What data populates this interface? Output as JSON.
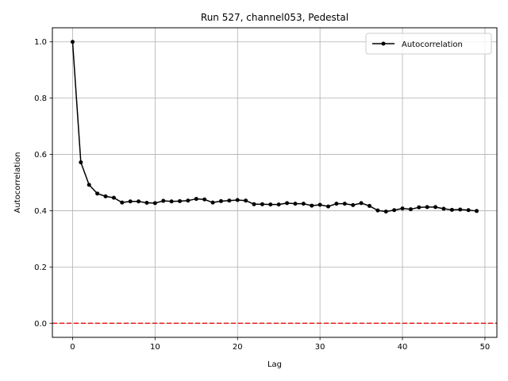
{
  "chart_data": {
    "type": "line",
    "title": "Run 527, channel053, Pedestal",
    "xlabel": "Lag",
    "ylabel": "Autocorrelation",
    "xlim": [
      -2.45,
      51.45
    ],
    "ylim": [
      -0.05,
      1.05
    ],
    "x_ticks": [
      0,
      10,
      20,
      30,
      40,
      50
    ],
    "y_ticks": [
      0.0,
      0.2,
      0.4,
      0.6,
      0.8,
      1.0
    ],
    "x_tick_labels": [
      "0",
      "10",
      "20",
      "30",
      "40",
      "50"
    ],
    "y_tick_labels": [
      "0.0",
      "0.2",
      "0.4",
      "0.6",
      "0.8",
      "1.0"
    ],
    "grid": true,
    "legend_position": "top-right",
    "series": [
      {
        "name": "Autocorrelation",
        "color": "#000000",
        "marker": "circle",
        "x": [
          0,
          1,
          2,
          3,
          4,
          5,
          6,
          7,
          8,
          9,
          10,
          11,
          12,
          13,
          14,
          15,
          16,
          17,
          18,
          19,
          20,
          21,
          22,
          23,
          24,
          25,
          26,
          27,
          28,
          29,
          30,
          31,
          32,
          33,
          34,
          35,
          36,
          37,
          38,
          39,
          40,
          41,
          42,
          43,
          44,
          45,
          46,
          47,
          48,
          49
        ],
        "values": [
          1.0,
          0.572,
          0.492,
          0.461,
          0.451,
          0.446,
          0.429,
          0.433,
          0.433,
          0.428,
          0.427,
          0.435,
          0.433,
          0.434,
          0.436,
          0.442,
          0.44,
          0.429,
          0.434,
          0.436,
          0.438,
          0.436,
          0.423,
          0.423,
          0.422,
          0.422,
          0.427,
          0.425,
          0.425,
          0.418,
          0.421,
          0.415,
          0.425,
          0.425,
          0.42,
          0.427,
          0.417,
          0.401,
          0.397,
          0.402,
          0.408,
          0.405,
          0.412,
          0.413,
          0.413,
          0.407,
          0.403,
          0.404,
          0.402,
          0.399
        ]
      }
    ],
    "reference_lines": [
      {
        "axis": "y",
        "value": 0.0,
        "color": "#e8201d",
        "style": "dashed"
      }
    ]
  }
}
